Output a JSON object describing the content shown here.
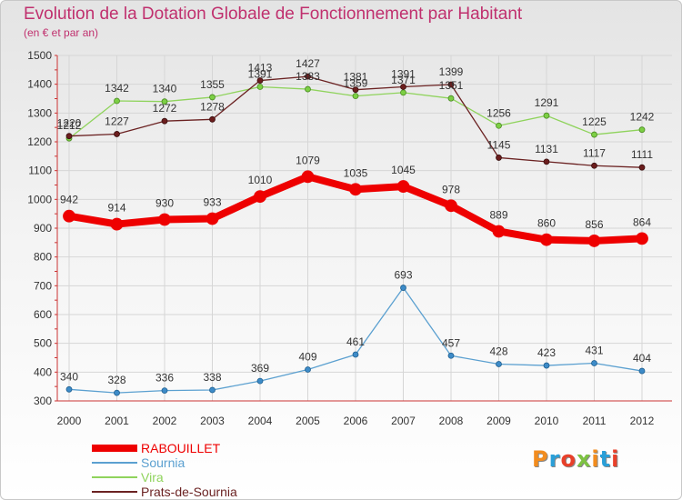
{
  "header": {
    "title": "Evolution de la Dotation Globale de Fonctionnement par Habitant",
    "subtitle": "(en € et par an)"
  },
  "logo": {
    "text": "Proxiti",
    "colors": [
      "#f28c1e",
      "#2a9fd8",
      "#e8402a",
      "#7dc242",
      "#f28c1e",
      "#2a9fd8",
      "#e8402a"
    ]
  },
  "chart_data": {
    "type": "line",
    "title": "Evolution de la Dotation Globale de Fonctionnement par Habitant",
    "subtitle": "(en € et par an)",
    "xlabel": "",
    "ylabel": "",
    "x": [
      "2000",
      "2001",
      "2002",
      "2003",
      "2004",
      "2005",
      "2006",
      "2007",
      "2008",
      "2009",
      "2010",
      "2011",
      "2012"
    ],
    "yticks": [
      300,
      400,
      500,
      600,
      700,
      800,
      900,
      1000,
      1100,
      1200,
      1300,
      1400,
      1500
    ],
    "ylim": [
      300,
      1500
    ],
    "grid": true,
    "legend_position": "bottom-left",
    "series": [
      {
        "name": "RABOUILLET",
        "color": "#ee0000",
        "values": [
          942,
          914,
          930,
          933,
          1010,
          1079,
          1035,
          1045,
          978,
          889,
          860,
          856,
          864
        ]
      },
      {
        "name": "Sournia",
        "color": "#5ba0d0",
        "values": [
          340,
          328,
          336,
          338,
          369,
          409,
          461,
          693,
          457,
          428,
          423,
          431,
          404
        ]
      },
      {
        "name": "Vira",
        "color": "#8fd35c",
        "values": [
          1212,
          1342,
          1340,
          1355,
          1391,
          1383,
          1359,
          1371,
          1351,
          1256,
          1291,
          1225,
          1242
        ]
      },
      {
        "name": "Prats-de-Sournia",
        "color": "#6b2222",
        "values": [
          1220,
          1227,
          1272,
          1278,
          1413,
          1427,
          1381,
          1391,
          1399,
          1145,
          1131,
          1117,
          1111
        ]
      }
    ]
  }
}
